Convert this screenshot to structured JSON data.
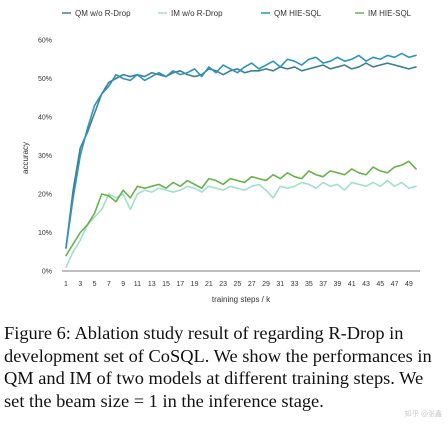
{
  "chart_data": {
    "type": "line",
    "xlabel": "training steps / k",
    "ylabel": "accuracy",
    "ylim": [
      0,
      0.6
    ],
    "yticks": [
      {
        "v": 0,
        "label": "0%"
      },
      {
        "v": 0.1,
        "label": "10%"
      },
      {
        "v": 0.2,
        "label": "20%"
      },
      {
        "v": 0.3,
        "label": "30%"
      },
      {
        "v": 0.4,
        "label": "40%"
      },
      {
        "v": 0.5,
        "label": "50%"
      },
      {
        "v": 0.6,
        "label": "60%"
      }
    ],
    "xtick_labels": [
      "1",
      "3",
      "5",
      "7",
      "9",
      "11",
      "13",
      "15",
      "17",
      "19",
      "21",
      "23",
      "25",
      "27",
      "29",
      "31",
      "33",
      "35",
      "37",
      "39",
      "41",
      "43",
      "45",
      "47",
      "49"
    ],
    "x": [
      1,
      2,
      3,
      4,
      5,
      6,
      7,
      8,
      9,
      10,
      11,
      12,
      13,
      14,
      15,
      16,
      17,
      18,
      19,
      20,
      21,
      22,
      23,
      24,
      25,
      26,
      27,
      28,
      29,
      30,
      31,
      32,
      33,
      34,
      35,
      36,
      37,
      38,
      39,
      40,
      41,
      42,
      43,
      44,
      45,
      46,
      47,
      48,
      49,
      50
    ],
    "legend_position": "top",
    "grid": false,
    "series": [
      {
        "name": "QM w/o R-Drop",
        "color": "#3f7f93",
        "values": [
          0.06,
          0.21,
          0.32,
          0.36,
          0.41,
          0.46,
          0.49,
          0.5,
          0.51,
          0.505,
          0.51,
          0.505,
          0.515,
          0.51,
          0.505,
          0.515,
          0.52,
          0.51,
          0.505,
          0.51,
          0.525,
          0.52,
          0.51,
          0.52,
          0.525,
          0.515,
          0.52,
          0.52,
          0.525,
          0.52,
          0.53,
          0.525,
          0.53,
          0.52,
          0.525,
          0.53,
          0.535,
          0.525,
          0.53,
          0.535,
          0.525,
          0.53,
          0.54,
          0.53,
          0.535,
          0.54,
          0.535,
          0.53,
          0.525,
          0.53
        ]
      },
      {
        "name": "IM w/o R-Drop",
        "color": "#9fe0cc",
        "values": [
          0.01,
          0.05,
          0.08,
          0.12,
          0.14,
          0.16,
          0.2,
          0.19,
          0.2,
          0.16,
          0.2,
          0.21,
          0.205,
          0.215,
          0.21,
          0.205,
          0.21,
          0.22,
          0.215,
          0.205,
          0.22,
          0.215,
          0.21,
          0.22,
          0.215,
          0.21,
          0.22,
          0.225,
          0.21,
          0.19,
          0.22,
          0.215,
          0.22,
          0.23,
          0.225,
          0.215,
          0.23,
          0.22,
          0.225,
          0.21,
          0.23,
          0.225,
          0.22,
          0.23,
          0.22,
          0.235,
          0.22,
          0.23,
          0.215,
          0.22
        ]
      },
      {
        "name": "QM HIE-SQL",
        "color": "#2e93bf",
        "values": [
          0.06,
          0.19,
          0.3,
          0.37,
          0.43,
          0.46,
          0.48,
          0.51,
          0.5,
          0.495,
          0.51,
          0.495,
          0.505,
          0.515,
          0.505,
          0.52,
          0.51,
          0.515,
          0.525,
          0.505,
          0.53,
          0.515,
          0.535,
          0.525,
          0.515,
          0.53,
          0.54,
          0.525,
          0.535,
          0.545,
          0.53,
          0.55,
          0.545,
          0.535,
          0.55,
          0.555,
          0.54,
          0.545,
          0.555,
          0.545,
          0.55,
          0.56,
          0.545,
          0.555,
          0.55,
          0.56,
          0.555,
          0.565,
          0.555,
          0.56
        ]
      },
      {
        "name": "IM HIE-SQL",
        "color": "#67b34a",
        "values": [
          0.04,
          0.07,
          0.1,
          0.12,
          0.15,
          0.2,
          0.195,
          0.18,
          0.21,
          0.19,
          0.22,
          0.215,
          0.22,
          0.225,
          0.215,
          0.23,
          0.22,
          0.235,
          0.225,
          0.215,
          0.24,
          0.235,
          0.225,
          0.24,
          0.235,
          0.23,
          0.245,
          0.24,
          0.235,
          0.25,
          0.24,
          0.255,
          0.245,
          0.24,
          0.26,
          0.25,
          0.245,
          0.26,
          0.255,
          0.25,
          0.265,
          0.255,
          0.25,
          0.27,
          0.26,
          0.255,
          0.27,
          0.275,
          0.285,
          0.265
        ]
      }
    ]
  },
  "caption": "Figure 6: Ablation study result of regarding R-Drop in development set of CoSQL. We show the performances in QM and IM of two models at different training steps. We set the beam size = 1 in the inference stage.",
  "watermark": "知乎 @张鑫"
}
